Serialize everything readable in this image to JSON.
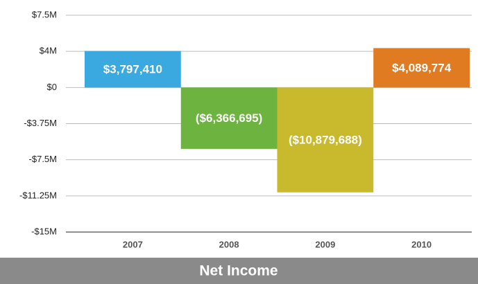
{
  "chart_data": {
    "type": "bar",
    "title": "Net Income",
    "categories": [
      "2007",
      "2008",
      "2009",
      "2010"
    ],
    "values": [
      3797410,
      -6366695,
      -10879688,
      4089774
    ],
    "value_labels": [
      "$3,797,410",
      "($6,366,695)",
      "($10,879,688)",
      "$4,089,774"
    ],
    "colors": [
      "#3aa9e0",
      "#6db33f",
      "#c9b92c",
      "#e07b22"
    ],
    "ylim": [
      -15000000,
      7500000
    ],
    "yticks": [
      {
        "value": -15000000,
        "label": "-$15M"
      },
      {
        "value": -11250000,
        "label": "-$11.25M"
      },
      {
        "value": -7500000,
        "label": "-$7.5M"
      },
      {
        "value": -3750000,
        "label": "-$3.75M"
      },
      {
        "value": 0,
        "label": "$0"
      },
      {
        "value": 3750000,
        "label": "$4M"
      },
      {
        "value": 7500000,
        "label": "$7.5M"
      }
    ],
    "grid": true
  }
}
